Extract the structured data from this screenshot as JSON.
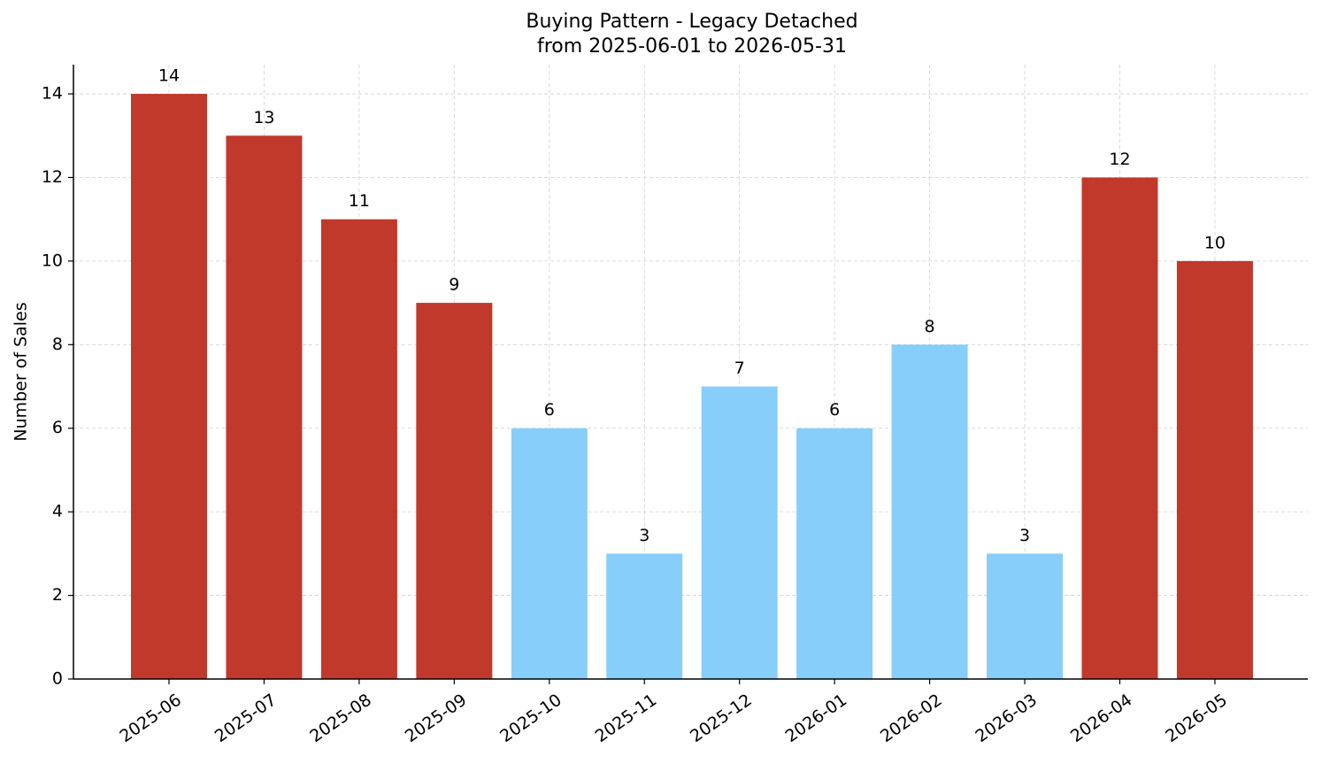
{
  "chart_data": {
    "type": "bar",
    "title": "Buying Pattern - Legacy Detached",
    "subtitle": "from 2025-06-01 to 2026-05-31",
    "y_label": "Number of Sales",
    "categories": [
      "2025-06",
      "2025-07",
      "2025-08",
      "2025-09",
      "2025-10",
      "2025-11",
      "2025-12",
      "2026-01",
      "2026-02",
      "2026-03",
      "2026-04",
      "2026-05"
    ],
    "values": [
      14,
      13,
      11,
      9,
      6,
      3,
      7,
      6,
      8,
      3,
      12,
      10
    ],
    "colors": [
      "#c0392b",
      "#c0392b",
      "#c0392b",
      "#c0392b",
      "#87cefa",
      "#87cefa",
      "#87cefa",
      "#87cefa",
      "#87cefa",
      "#87cefa",
      "#c0392b",
      "#c0392b"
    ],
    "ylim": [
      0,
      14.7
    ],
    "yticks": [
      0,
      2,
      4,
      6,
      8,
      10,
      12,
      14
    ],
    "grid": true
  }
}
